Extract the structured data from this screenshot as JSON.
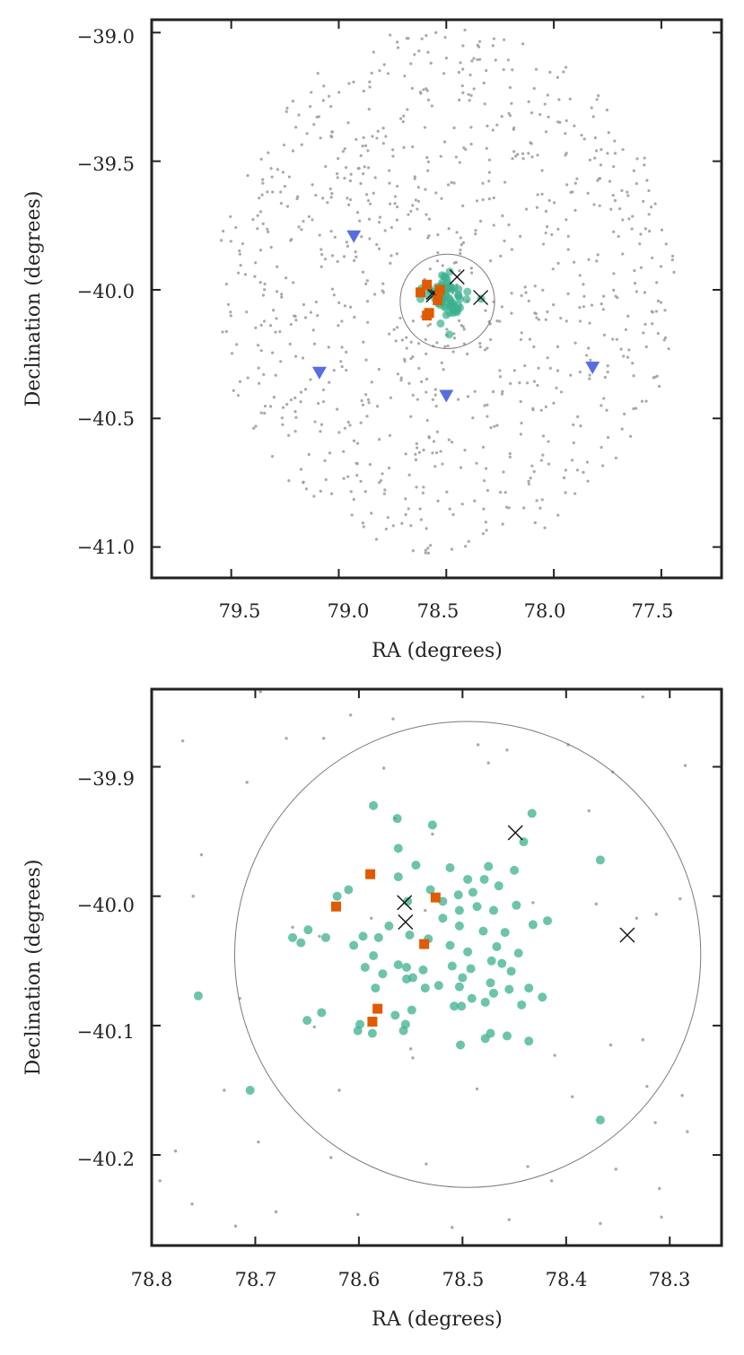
{
  "colors": {
    "field": "#9a9a9a",
    "members": "#3bb08f",
    "squares": "#e05a00",
    "triangles": "#3a55d8",
    "crosses": "#111111",
    "circle": "#7a7a7a",
    "axes": "#222222"
  },
  "chart_data": [
    {
      "type": "scatter",
      "title": "",
      "xlabel": "RA (degrees)",
      "ylabel": "Declination (degrees)",
      "xlim": [
        79.87,
        77.22
      ],
      "ylim": [
        -41.12,
        -38.95
      ],
      "xticks": [
        79.5,
        79.0,
        78.5,
        78.0,
        77.5
      ],
      "xtick_labels": [
        "79.5",
        "79.0",
        "78.5",
        "78.0",
        "77.5"
      ],
      "yticks": [
        -39.0,
        -39.5,
        -40.0,
        -40.5,
        -41.0
      ],
      "ytick_labels": [
        "−39.0",
        "−39.5",
        "−40.0",
        "−40.5",
        "−41.0"
      ],
      "circle": {
        "ra": 78.495,
        "dec": -40.045,
        "radius_deg": 0.2
      },
      "field_region": {
        "ra": 78.5,
        "dec": -40.0,
        "radius_deg": 1.05,
        "count": 900
      },
      "member_cluster": {
        "ra": 78.5,
        "dec": -40.03,
        "spread_deg": 0.09,
        "count": 70
      },
      "series": [
        {
          "name": "triangles",
          "marker": "triangle-down",
          "points": [
            [
              78.93,
              -39.79
            ],
            [
              79.09,
              -40.32
            ],
            [
              78.5,
              -40.41
            ],
            [
              77.82,
              -40.3
            ]
          ]
        },
        {
          "name": "squares",
          "marker": "square",
          "points": [
            [
              78.59,
              -39.98
            ],
            [
              78.62,
              -40.01
            ],
            [
              78.54,
              -40.04
            ],
            [
              78.53,
              -40.0
            ],
            [
              78.58,
              -40.09
            ],
            [
              78.59,
              -40.1
            ]
          ]
        },
        {
          "name": "crosses",
          "marker": "x",
          "points": [
            [
              78.45,
              -39.95
            ],
            [
              78.56,
              -40.01
            ],
            [
              78.56,
              -40.02
            ],
            [
              78.34,
              -40.03
            ]
          ]
        }
      ]
    },
    {
      "type": "scatter",
      "title": "",
      "xlabel": "RA (degrees)",
      "ylabel": "Declination (degrees)",
      "xlim": [
        78.8,
        78.25
      ],
      "ylim": [
        -40.27,
        -39.84
      ],
      "xticks": [
        78.8,
        78.7,
        78.6,
        78.5,
        78.4,
        78.3
      ],
      "xtick_labels": [
        "78.8",
        "78.7",
        "78.6",
        "78.5",
        "78.4",
        "78.3"
      ],
      "yticks": [
        -39.9,
        -40.0,
        -40.1,
        -40.2
      ],
      "ytick_labels": [
        "−39.9",
        "−40.0",
        "−40.1",
        "−40.2"
      ],
      "circle": {
        "ra": 78.495,
        "dec": -40.045,
        "radius_deg": 0.2
      },
      "series": [
        {
          "name": "field",
          "marker": "dot",
          "points": [
            [
              78.695,
              -39.842
            ],
            [
              78.608,
              -39.86
            ],
            [
              78.567,
              -39.863
            ],
            [
              78.457,
              -39.887
            ],
            [
              78.485,
              -39.883
            ],
            [
              78.398,
              -39.883
            ],
            [
              78.326,
              -39.846
            ],
            [
              78.77,
              -39.88
            ],
            [
              78.67,
              -39.878
            ],
            [
              78.634,
              -39.878
            ],
            [
              78.576,
              -39.901
            ],
            [
              78.475,
              -39.897
            ],
            [
              78.355,
              -39.904
            ],
            [
              78.285,
              -39.899
            ],
            [
              78.708,
              -39.912
            ],
            [
              78.565,
              -39.94
            ],
            [
              78.529,
              -39.952
            ],
            [
              78.378,
              -39.934
            ],
            [
              78.752,
              -39.968
            ],
            [
              78.76,
              -40.0
            ],
            [
              78.664,
              -40.024
            ],
            [
              78.638,
              -40.031
            ],
            [
              78.588,
              -40.017
            ],
            [
              78.536,
              -40.011
            ],
            [
              78.432,
              -40.005
            ],
            [
              78.371,
              -40.006
            ],
            [
              78.332,
              -40.017
            ],
            [
              78.313,
              -40.014
            ],
            [
              78.29,
              -40.002
            ],
            [
              78.715,
              -40.079
            ],
            [
              78.643,
              -40.101
            ],
            [
              78.55,
              -40.118
            ],
            [
              78.411,
              -40.123
            ],
            [
              78.357,
              -40.115
            ],
            [
              78.326,
              -40.111
            ],
            [
              78.73,
              -40.15
            ],
            [
              78.619,
              -40.15
            ],
            [
              78.548,
              -40.125
            ],
            [
              78.486,
              -40.149
            ],
            [
              78.394,
              -40.155
            ],
            [
              78.322,
              -40.147
            ],
            [
              78.288,
              -40.154
            ],
            [
              78.777,
              -40.197
            ],
            [
              78.697,
              -40.19
            ],
            [
              78.627,
              -40.202
            ],
            [
              78.535,
              -40.207
            ],
            [
              78.437,
              -40.209
            ],
            [
              78.352,
              -40.211
            ],
            [
              78.314,
              -40.175
            ],
            [
              78.283,
              -40.182
            ],
            [
              78.761,
              -40.238
            ],
            [
              78.68,
              -40.244
            ],
            [
              78.601,
              -40.246
            ],
            [
              78.414,
              -40.22
            ],
            [
              78.367,
              -40.253
            ],
            [
              78.308,
              -40.248
            ],
            [
              78.792,
              -40.22
            ],
            [
              78.719,
              -40.255
            ],
            [
              78.51,
              -40.256
            ],
            [
              78.455,
              -40.25
            ],
            [
              78.31,
              -40.226
            ]
          ]
        },
        {
          "name": "members",
          "marker": "circle",
          "points": [
            [
              78.586,
              -39.93
            ],
            [
              78.563,
              -39.94
            ],
            [
              78.529,
              -39.945
            ],
            [
              78.433,
              -39.936
            ],
            [
              78.441,
              -39.958
            ],
            [
              78.562,
              -39.963
            ],
            [
              78.545,
              -39.976
            ],
            [
              78.512,
              -39.978
            ],
            [
              78.495,
              -39.987
            ],
            [
              78.475,
              -39.977
            ],
            [
              78.45,
              -39.98
            ],
            [
              78.562,
              -39.985
            ],
            [
              78.531,
              -39.995
            ],
            [
              78.504,
              -39.999
            ],
            [
              78.49,
              -39.997
            ],
            [
              78.479,
              -39.987
            ],
            [
              78.465,
              -39.992
            ],
            [
              78.61,
              -39.995
            ],
            [
              78.621,
              -40.0
            ],
            [
              78.553,
              -40.004
            ],
            [
              78.519,
              -40.004
            ],
            [
              78.503,
              -40.011
            ],
            [
              78.486,
              -40.008
            ],
            [
              78.47,
              -40.011
            ],
            [
              78.448,
              -40.007
            ],
            [
              78.519,
              -40.017
            ],
            [
              78.503,
              -40.023
            ],
            [
              78.48,
              -40.027
            ],
            [
              78.459,
              -40.028
            ],
            [
              78.432,
              -40.022
            ],
            [
              78.418,
              -40.019
            ],
            [
              78.649,
              -40.026
            ],
            [
              78.632,
              -40.032
            ],
            [
              78.596,
              -40.031
            ],
            [
              78.581,
              -40.032
            ],
            [
              78.571,
              -40.023
            ],
            [
              78.551,
              -40.03
            ],
            [
              78.533,
              -40.033
            ],
            [
              78.512,
              -40.038
            ],
            [
              78.495,
              -40.043
            ],
            [
              78.467,
              -40.039
            ],
            [
              78.446,
              -40.044
            ],
            [
              78.664,
              -40.032
            ],
            [
              78.656,
              -40.036
            ],
            [
              78.605,
              -40.038
            ],
            [
              78.586,
              -40.046
            ],
            [
              78.562,
              -40.053
            ],
            [
              78.554,
              -40.055
            ],
            [
              78.538,
              -40.057
            ],
            [
              78.51,
              -40.054
            ],
            [
              78.492,
              -40.056
            ],
            [
              78.472,
              -40.05
            ],
            [
              78.462,
              -40.052
            ],
            [
              78.453,
              -40.058
            ],
            [
              78.594,
              -40.055
            ],
            [
              78.577,
              -40.06
            ],
            [
              78.554,
              -40.064
            ],
            [
              78.548,
              -40.063
            ],
            [
              78.5,
              -40.063
            ],
            [
              78.503,
              -40.07
            ],
            [
              78.523,
              -40.069
            ],
            [
              78.473,
              -40.067
            ],
            [
              78.436,
              -40.071
            ],
            [
              78.584,
              -40.071
            ],
            [
              78.536,
              -40.071
            ],
            [
              78.491,
              -40.079
            ],
            [
              78.47,
              -40.075
            ],
            [
              78.455,
              -40.072
            ],
            [
              78.443,
              -40.084
            ],
            [
              78.501,
              -40.085
            ],
            [
              78.478,
              -40.082
            ],
            [
              78.508,
              -40.085
            ],
            [
              78.549,
              -40.088
            ],
            [
              78.565,
              -40.092
            ],
            [
              78.599,
              -40.099
            ],
            [
              78.636,
              -40.09
            ],
            [
              78.65,
              -40.096
            ],
            [
              78.555,
              -40.099
            ],
            [
              78.557,
              -40.104
            ],
            [
              78.587,
              -40.106
            ],
            [
              78.601,
              -40.104
            ],
            [
              78.502,
              -40.115
            ],
            [
              78.478,
              -40.11
            ],
            [
              78.473,
              -40.106
            ],
            [
              78.457,
              -40.108
            ],
            [
              78.436,
              -40.112
            ],
            [
              78.423,
              -40.078
            ],
            [
              78.755,
              -40.077
            ],
            [
              78.705,
              -40.15
            ],
            [
              78.367,
              -40.173
            ],
            [
              78.367,
              -39.972
            ]
          ]
        },
        {
          "name": "squares",
          "marker": "square",
          "points": [
            [
              78.589,
              -39.983
            ],
            [
              78.622,
              -40.008
            ],
            [
              78.537,
              -40.037
            ],
            [
              78.526,
              -40.001
            ],
            [
              78.582,
              -40.087
            ],
            [
              78.587,
              -40.097
            ]
          ]
        },
        {
          "name": "crosses",
          "marker": "x",
          "points": [
            [
              78.449,
              -39.951
            ],
            [
              78.556,
              -40.005
            ],
            [
              78.555,
              -40.02
            ],
            [
              78.341,
              -40.03
            ]
          ]
        }
      ]
    }
  ]
}
